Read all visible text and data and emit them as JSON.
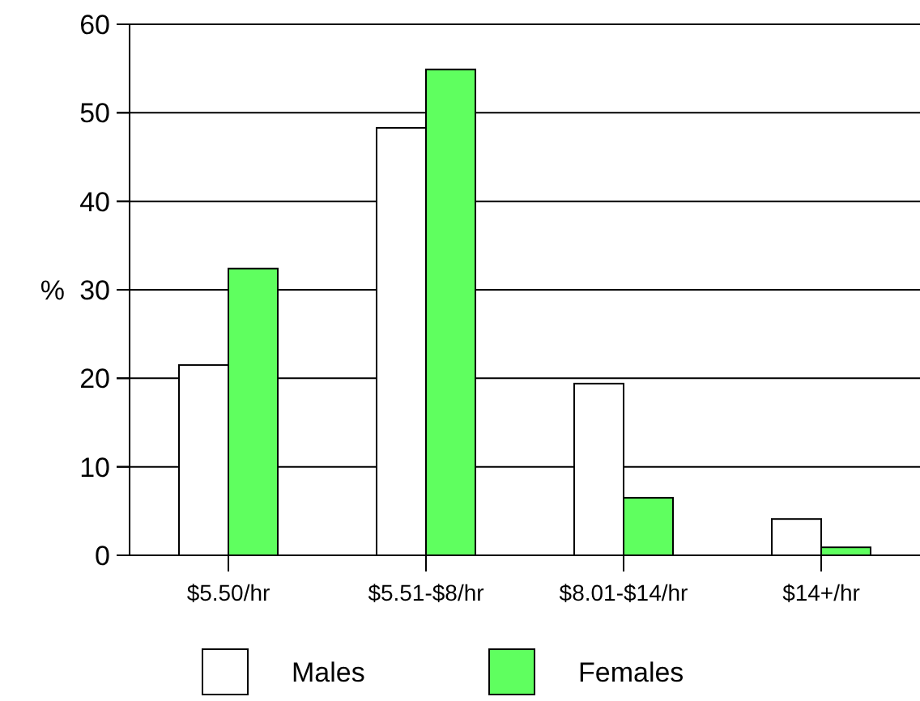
{
  "chart_data": {
    "type": "bar",
    "ylabel": "%",
    "categories": [
      "$5.50/hr",
      "$5.51-$8/hr",
      "$8.01-$14/hr",
      "$14+/hr"
    ],
    "series": [
      {
        "name": "Males",
        "color": "#ffffff",
        "values": [
          21.5,
          48.3,
          19.4,
          4.1
        ]
      },
      {
        "name": "Females",
        "color": "#5fff5f",
        "values": [
          32.4,
          54.9,
          6.5,
          0.9
        ]
      }
    ],
    "ylim": [
      0,
      60
    ],
    "yticks": [
      0,
      10,
      20,
      30,
      40,
      50,
      60
    ],
    "grid": "y",
    "legend": "bottom"
  }
}
